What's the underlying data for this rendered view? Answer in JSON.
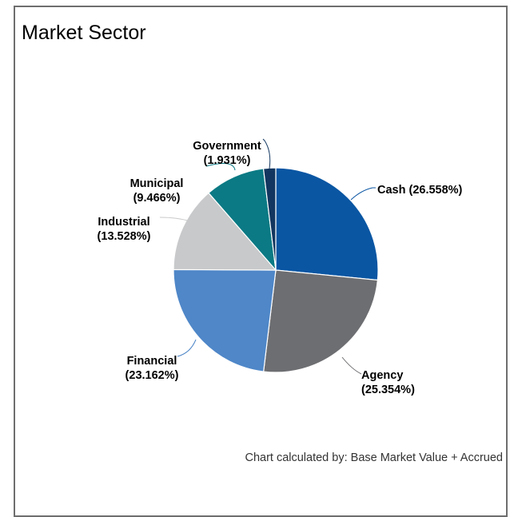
{
  "title": "Market Sector",
  "footnote": "Chart calculated by: Base Market Value + Accrued",
  "chart_data": {
    "type": "pie",
    "title": "Market Sector",
    "slices": [
      {
        "name": "Cash",
        "value": 26.558,
        "label_line1": "Cash (26.558%)",
        "label_line2": "",
        "color": "#0a56a3"
      },
      {
        "name": "Agency",
        "value": 25.354,
        "label_line1": "Agency",
        "label_line2": "(25.354%)",
        "color": "#6d6e71"
      },
      {
        "name": "Financial",
        "value": 23.162,
        "label_line1": "Financial",
        "label_line2": "(23.162%)",
        "color": "#4f87c8"
      },
      {
        "name": "Industrial",
        "value": 13.528,
        "label_line1": "Industrial",
        "label_line2": "(13.528%)",
        "color": "#c8c9ca"
      },
      {
        "name": "Municipal",
        "value": 9.466,
        "label_line1": "Municipal",
        "label_line2": "(9.466%)",
        "color": "#0b7a84"
      },
      {
        "name": "Government",
        "value": 1.931,
        "label_line1": "Government",
        "label_line2": "(1.931%)",
        "color": "#12365f"
      }
    ],
    "start_angle": "12 o'clock",
    "direction": "clockwise",
    "legend": "none",
    "data_labels": "outside with leader lines"
  }
}
